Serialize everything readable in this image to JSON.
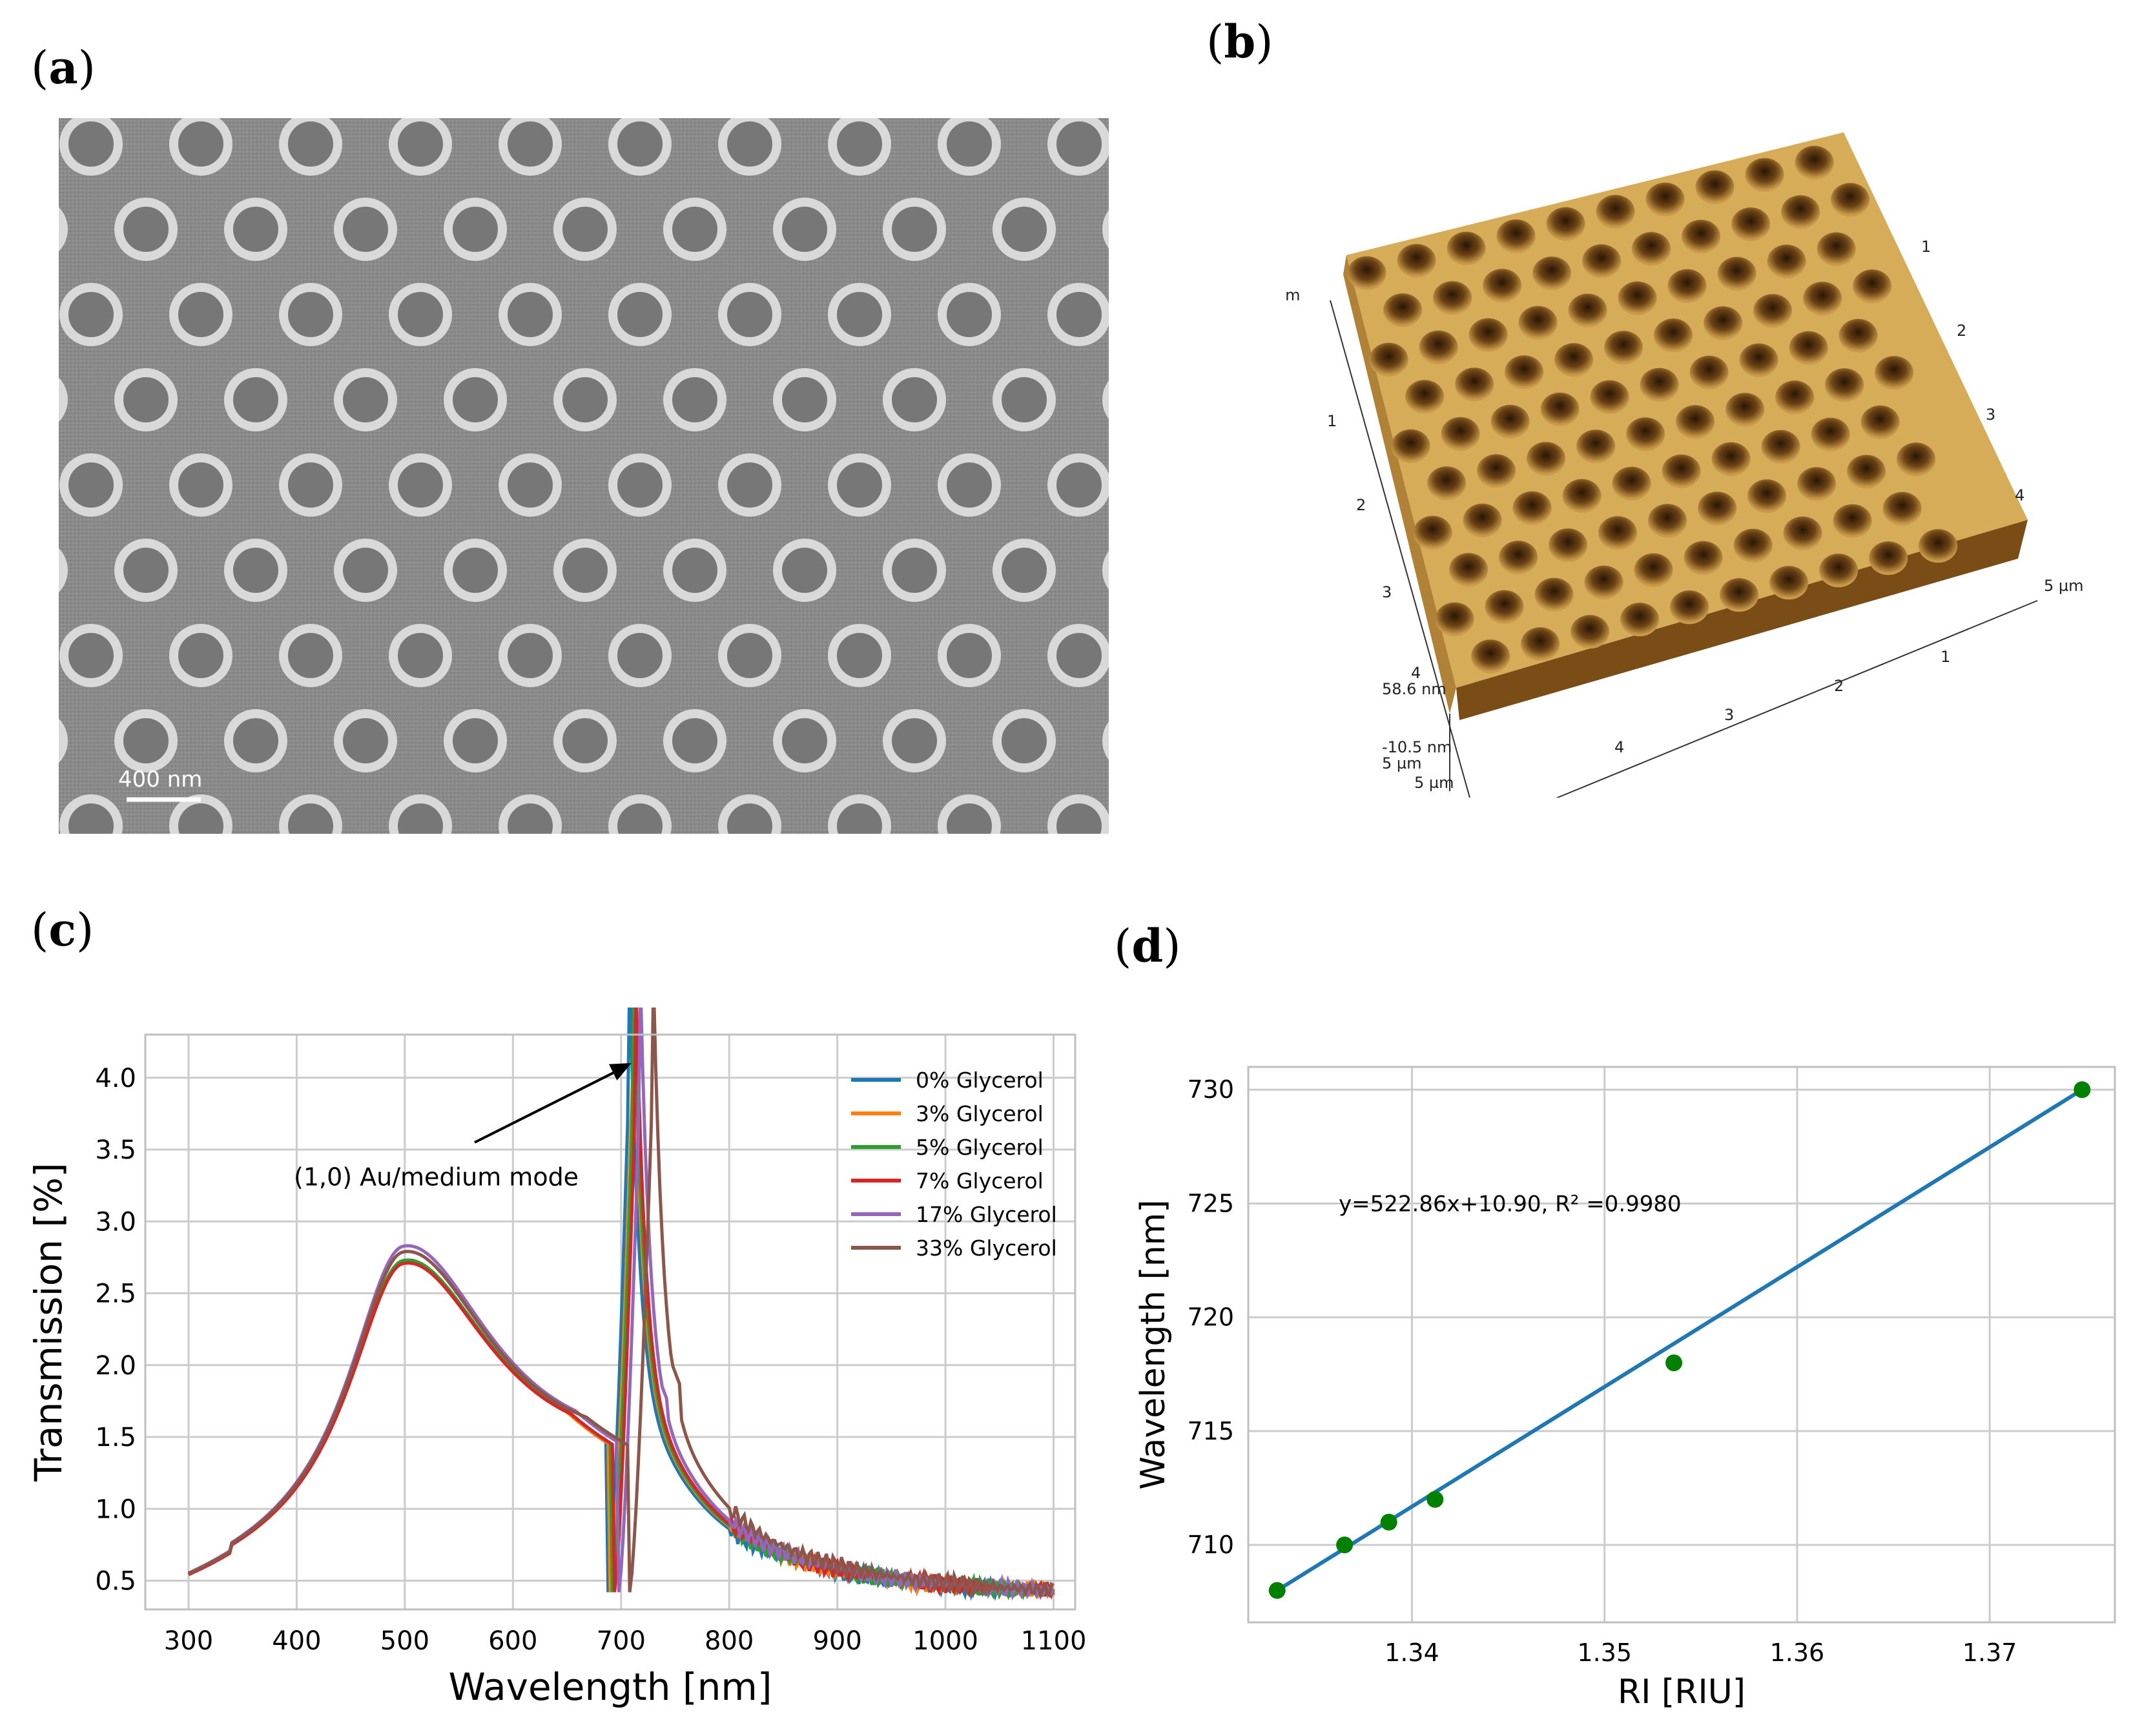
{
  "panels": {
    "a": {
      "label": "a",
      "scale_bar": "400 nm"
    },
    "b": {
      "label": "b",
      "afm_axis_labels": {
        "top_left": "5 µm",
        "left_ticks": [
          "1",
          "2",
          "3",
          "4"
        ],
        "right_ticks": [
          "1",
          "2",
          "3",
          "4"
        ],
        "right_end": "5 µm",
        "bottom_ticks": [
          "1",
          "2",
          "3",
          "4"
        ],
        "bottom_left_unit": "5 µm",
        "corner_unit": "5 µm",
        "z_max": "58.6 nm",
        "z_min": "-10.5 nm"
      }
    },
    "c": {
      "label": "c",
      "annotation": "(1,0) Au/medium mode"
    },
    "d": {
      "label": "d",
      "annotation": "y=522.86x+10.90, R² =0.9980"
    }
  },
  "chart_data": [
    {
      "panel": "c",
      "type": "line",
      "xlabel": "Wavelength [nm]",
      "ylabel": "Transmission [%]",
      "xlim": [
        260,
        1120
      ],
      "ylim": [
        0.3,
        4.3
      ],
      "xticks": [
        300,
        400,
        500,
        600,
        700,
        800,
        900,
        1000,
        1100
      ],
      "yticks": [
        0.5,
        1.0,
        1.5,
        2.0,
        2.5,
        3.0,
        3.5,
        4.0
      ],
      "ytick_labels": [
        "0.5",
        "1.0",
        "1.5",
        "2.0",
        "2.5",
        "3.0",
        "3.5",
        "4.0"
      ],
      "grid": true,
      "legend": "top-right",
      "series": [
        {
          "name": "0% Glycerol",
          "color": "#1f77b4",
          "peak1": 2.7,
          "dip": 688,
          "peak2_x": 708,
          "peak2_y": 4.18,
          "shoulder": 1.95
        },
        {
          "name": "3% Glycerol",
          "color": "#ff7f0e",
          "peak1": 2.68,
          "dip": 690,
          "peak2_x": 711,
          "peak2_y": 4.1,
          "shoulder": 1.95
        },
        {
          "name": "5% Glycerol",
          "color": "#2ca02c",
          "peak1": 2.7,
          "dip": 692,
          "peak2_x": 712,
          "peak2_y": 4.12,
          "shoulder": 1.95
        },
        {
          "name": "7% Glycerol",
          "color": "#d62728",
          "peak1": 2.68,
          "dip": 694,
          "peak2_x": 714,
          "peak2_y": 4.05,
          "shoulder": 1.95
        },
        {
          "name": "17% Glycerol",
          "color": "#9467bd",
          "peak1": 2.8,
          "dip": 698,
          "peak2_x": 718,
          "peak2_y": 4.12,
          "shoulder": 2.05
        },
        {
          "name": "33% Glycerol",
          "color": "#8c564b",
          "peak1": 2.76,
          "dip": 708,
          "peak2_x": 730,
          "peak2_y": 4.15,
          "shoulder": 2.15
        }
      ],
      "annotation_target": [
        712,
        4.12
      ]
    },
    {
      "panel": "d",
      "type": "scatter",
      "xlabel": "RI [RIU]",
      "ylabel": "Wavelength [nm]",
      "xlim": [
        1.3315,
        1.3765
      ],
      "ylim": [
        706.6,
        731.0
      ],
      "xticks": [
        1.34,
        1.35,
        1.36,
        1.37
      ],
      "xtick_labels": [
        "1.34",
        "1.35",
        "1.36",
        "1.37"
      ],
      "yticks": [
        710,
        715,
        720,
        725,
        730
      ],
      "ytick_labels": [
        "710",
        "715",
        "720",
        "725",
        "730"
      ],
      "grid": true,
      "points": [
        {
          "x": 1.333,
          "y": 708
        },
        {
          "x": 1.3365,
          "y": 710
        },
        {
          "x": 1.3388,
          "y": 711
        },
        {
          "x": 1.3412,
          "y": 712
        },
        {
          "x": 1.3536,
          "y": 718
        },
        {
          "x": 1.3748,
          "y": 730
        }
      ],
      "point_color": "#008000",
      "fit": {
        "slope": 522.86,
        "intercept": 10.9,
        "r2": 0.998,
        "x_range": [
          1.333,
          1.3748
        ],
        "color": "#1f77b4"
      }
    }
  ]
}
